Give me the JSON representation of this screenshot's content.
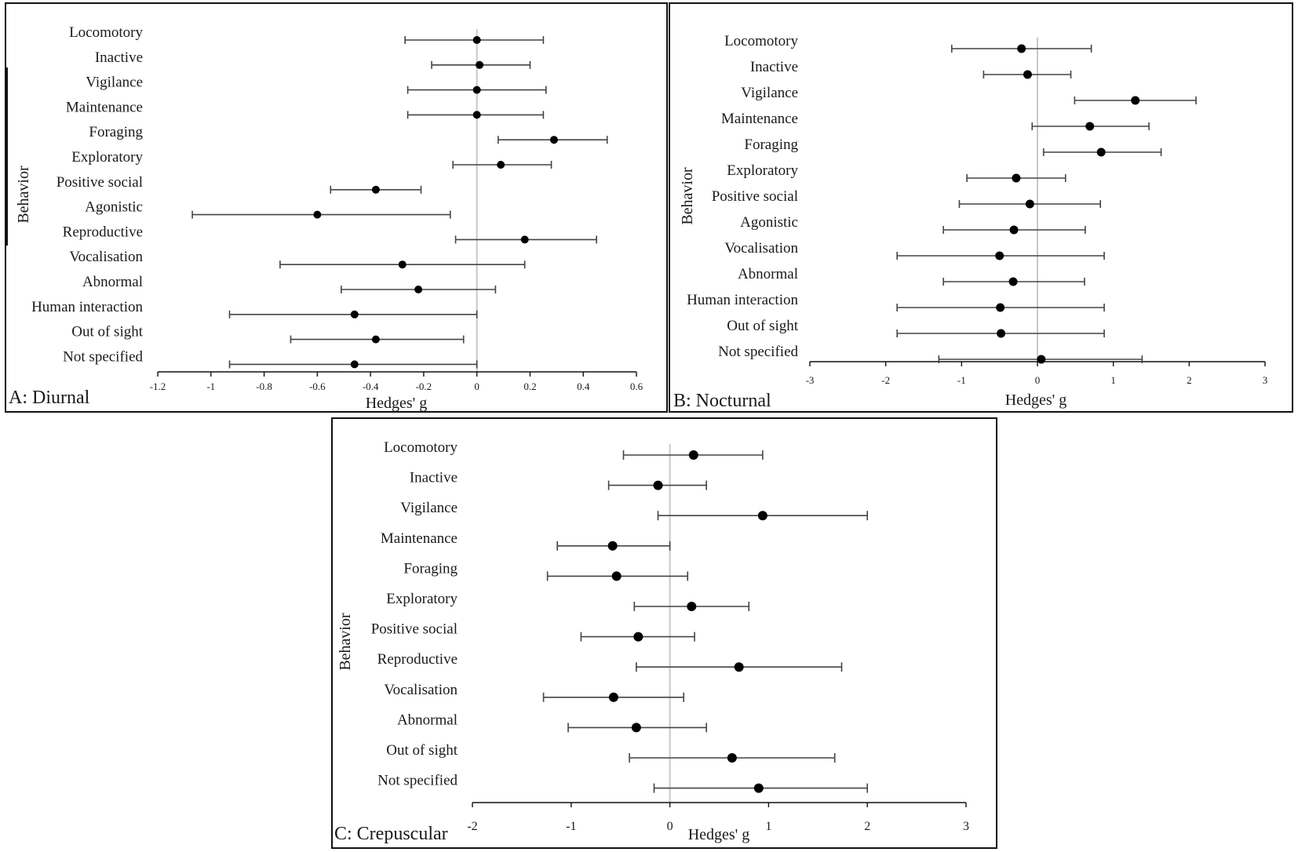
{
  "chart_data": [
    {
      "type": "forest",
      "panel_label": "A: Diurnal",
      "xlabel": "Hedges' g",
      "ylabel": "Behavior",
      "xlim": [
        -1.2,
        0.6
      ],
      "xticks": [
        "-1.2",
        "-1",
        "-0.8",
        "-0.6",
        "-0.4",
        "-0.2",
        "0",
        "0.2",
        "0.4",
        "0.6"
      ],
      "tick_values": [
        -1.2,
        -1,
        -0.8,
        -0.6,
        -0.4,
        -0.2,
        0,
        0.2,
        0.4,
        0.6
      ],
      "categories": [
        "Locomotory",
        "Inactive",
        "Vigilance",
        "Maintenance",
        "Foraging",
        "Exploratory",
        "Positive social",
        "Agonistic",
        "Reproductive",
        "Vocalisation",
        "Abnormal",
        "Human interaction",
        "Out of sight",
        "Not specified"
      ],
      "estimates": [
        0.0,
        0.01,
        0.0,
        0.0,
        0.29,
        0.09,
        -0.38,
        -0.6,
        0.18,
        -0.28,
        -0.22,
        -0.46,
        -0.38,
        -0.46
      ],
      "lower": [
        -0.27,
        -0.17,
        -0.26,
        -0.26,
        0.08,
        -0.09,
        -0.55,
        -1.07,
        -0.08,
        -0.74,
        -0.51,
        -0.93,
        -0.7,
        -0.93
      ],
      "upper": [
        0.25,
        0.2,
        0.26,
        0.25,
        0.49,
        0.28,
        -0.21,
        -0.1,
        0.45,
        0.18,
        0.07,
        0.0,
        -0.05,
        0.0
      ]
    },
    {
      "type": "forest",
      "panel_label": "B: Nocturnal",
      "xlabel": "Hedges' g",
      "ylabel": "Behavior",
      "xlim": [
        -3,
        3
      ],
      "xticks": [
        "-3",
        "-2",
        "-1",
        "0",
        "1",
        "2",
        "3"
      ],
      "tick_values": [
        -3,
        -2,
        -1,
        0,
        1,
        2,
        3
      ],
      "categories": [
        "Locomotory",
        "Inactive",
        "Vigilance",
        "Maintenance",
        "Foraging",
        "Exploratory",
        "Positive social",
        "Agonistic",
        "Vocalisation",
        "Abnormal",
        "Human interaction",
        "Out of sight",
        "Not specified"
      ],
      "estimates": [
        -0.21,
        -0.13,
        1.29,
        0.69,
        0.84,
        -0.28,
        -0.1,
        -0.31,
        -0.5,
        -0.32,
        -0.49,
        -0.48,
        0.05
      ],
      "lower": [
        -1.13,
        -0.71,
        0.49,
        -0.07,
        0.08,
        -0.93,
        -1.03,
        -1.24,
        -1.85,
        -1.24,
        -1.85,
        -1.85,
        -1.3
      ],
      "upper": [
        0.71,
        0.44,
        2.09,
        1.47,
        1.63,
        0.37,
        0.83,
        0.63,
        0.88,
        0.62,
        0.88,
        0.88,
        1.38
      ]
    },
    {
      "type": "forest",
      "panel_label": "C: Crepuscular",
      "xlabel": "Hedges' g",
      "ylabel": "Behavior",
      "xlim": [
        -2,
        3
      ],
      "xticks": [
        "-2",
        "-1",
        "0",
        "1",
        "2",
        "3"
      ],
      "tick_values": [
        -2,
        -1,
        0,
        1,
        2,
        3
      ],
      "categories": [
        "Locomotory",
        "Inactive",
        "Vigilance",
        "Maintenance",
        "Foraging",
        "Exploratory",
        "Positive social",
        "Reproductive",
        "Vocalisation",
        "Abnormal",
        "Out of sight",
        "Not specified"
      ],
      "estimates": [
        0.24,
        -0.12,
        0.94,
        -0.58,
        -0.54,
        0.22,
        -0.32,
        0.7,
        -0.57,
        -0.34,
        0.63,
        0.9
      ],
      "lower": [
        -0.47,
        -0.62,
        -0.12,
        -1.14,
        -1.24,
        -0.36,
        -0.9,
        -0.34,
        -1.28,
        -1.03,
        -0.41,
        -0.16
      ],
      "upper": [
        0.94,
        0.37,
        2.0,
        0.0,
        0.18,
        0.8,
        0.25,
        1.74,
        0.14,
        0.37,
        1.67,
        2.0
      ]
    }
  ]
}
